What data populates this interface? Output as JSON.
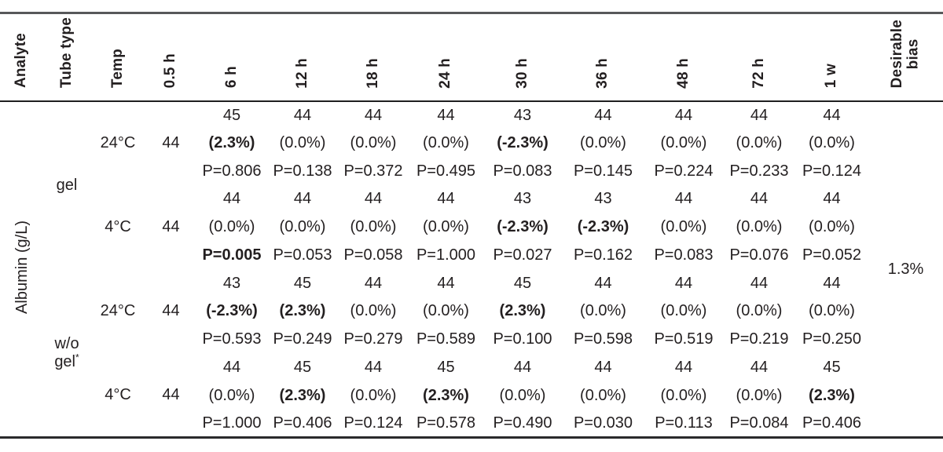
{
  "table": {
    "column_headers": [
      "Analyte",
      "Tube type",
      "Temp",
      "0.5 h",
      "6 h",
      "12 h",
      "18 h",
      "24 h",
      "30 h",
      "36 h",
      "48 h",
      "72 h",
      "1 w",
      "Desirable\nbias"
    ],
    "analyte_label": "Albumin (g/L)",
    "desirable_bias": "1.3%",
    "groups": [
      {
        "tube_type": "gel",
        "tube_note": "",
        "conditions": [
          {
            "temp": "24°C",
            "baseline": "44",
            "cells": [
              {
                "value": "45",
                "pct": "(2.3%)",
                "pct_bold": true,
                "p": "P=0.806",
                "p_bold": false
              },
              {
                "value": "44",
                "pct": "(0.0%)",
                "pct_bold": false,
                "p": "P=0.138",
                "p_bold": false
              },
              {
                "value": "44",
                "pct": "(0.0%)",
                "pct_bold": false,
                "p": "P=0.372",
                "p_bold": false
              },
              {
                "value": "44",
                "pct": "(0.0%)",
                "pct_bold": false,
                "p": "P=0.495",
                "p_bold": false
              },
              {
                "value": "43",
                "pct": "(-2.3%)",
                "pct_bold": true,
                "p": "P=0.083",
                "p_bold": false
              },
              {
                "value": "44",
                "pct": "(0.0%)",
                "pct_bold": false,
                "p": "P=0.145",
                "p_bold": false
              },
              {
                "value": "44",
                "pct": "(0.0%)",
                "pct_bold": false,
                "p": "P=0.224",
                "p_bold": false
              },
              {
                "value": "44",
                "pct": "(0.0%)",
                "pct_bold": false,
                "p": "P=0.233",
                "p_bold": false
              },
              {
                "value": "44",
                "pct": "(0.0%)",
                "pct_bold": false,
                "p": "P=0.124",
                "p_bold": false
              }
            ]
          },
          {
            "temp": "4°C",
            "baseline": "44",
            "cells": [
              {
                "value": "44",
                "pct": "(0.0%)",
                "pct_bold": false,
                "p": "P=0.005",
                "p_bold": true
              },
              {
                "value": "44",
                "pct": "(0.0%)",
                "pct_bold": false,
                "p": "P=0.053",
                "p_bold": false
              },
              {
                "value": "44",
                "pct": "(0.0%)",
                "pct_bold": false,
                "p": "P=0.058",
                "p_bold": false
              },
              {
                "value": "44",
                "pct": "(0.0%)",
                "pct_bold": false,
                "p": "P=1.000",
                "p_bold": false
              },
              {
                "value": "43",
                "pct": "(-2.3%)",
                "pct_bold": true,
                "p": "P=0.027",
                "p_bold": false
              },
              {
                "value": "43",
                "pct": "(-2.3%)",
                "pct_bold": true,
                "p": "P=0.162",
                "p_bold": false
              },
              {
                "value": "44",
                "pct": "(0.0%)",
                "pct_bold": false,
                "p": "P=0.083",
                "p_bold": false
              },
              {
                "value": "44",
                "pct": "(0.0%)",
                "pct_bold": false,
                "p": "P=0.076",
                "p_bold": false
              },
              {
                "value": "44",
                "pct": "(0.0%)",
                "pct_bold": false,
                "p": "P=0.052",
                "p_bold": false
              }
            ]
          }
        ]
      },
      {
        "tube_type": "w/o gel",
        "tube_note": "*",
        "conditions": [
          {
            "temp": "24°C",
            "baseline": "44",
            "cells": [
              {
                "value": "43",
                "pct": "(-2.3%)",
                "pct_bold": true,
                "p": "P=0.593",
                "p_bold": false
              },
              {
                "value": "45",
                "pct": "(2.3%)",
                "pct_bold": true,
                "p": "P=0.249",
                "p_bold": false
              },
              {
                "value": "44",
                "pct": "(0.0%)",
                "pct_bold": false,
                "p": "P=0.279",
                "p_bold": false
              },
              {
                "value": "44",
                "pct": "(0.0%)",
                "pct_bold": false,
                "p": "P=0.589",
                "p_bold": false
              },
              {
                "value": "45",
                "pct": "(2.3%)",
                "pct_bold": true,
                "p": "P=0.100",
                "p_bold": false
              },
              {
                "value": "44",
                "pct": "(0.0%)",
                "pct_bold": false,
                "p": "P=0.598",
                "p_bold": false
              },
              {
                "value": "44",
                "pct": "(0.0%)",
                "pct_bold": false,
                "p": "P=0.519",
                "p_bold": false
              },
              {
                "value": "44",
                "pct": "(0.0%)",
                "pct_bold": false,
                "p": "P=0.219",
                "p_bold": false
              },
              {
                "value": "44",
                "pct": "(0.0%)",
                "pct_bold": false,
                "p": "P=0.250",
                "p_bold": false
              }
            ]
          },
          {
            "temp": "4°C",
            "baseline": "44",
            "cells": [
              {
                "value": "44",
                "pct": "(0.0%)",
                "pct_bold": false,
                "p": "P=1.000",
                "p_bold": false
              },
              {
                "value": "45",
                "pct": "(2.3%)",
                "pct_bold": true,
                "p": "P=0.406",
                "p_bold": false
              },
              {
                "value": "44",
                "pct": "(0.0%)",
                "pct_bold": false,
                "p": "P=0.124",
                "p_bold": false
              },
              {
                "value": "45",
                "pct": "(2.3%)",
                "pct_bold": true,
                "p": "P=0.578",
                "p_bold": false
              },
              {
                "value": "44",
                "pct": "(0.0%)",
                "pct_bold": false,
                "p": "P=0.490",
                "p_bold": false
              },
              {
                "value": "44",
                "pct": "(0.0%)",
                "pct_bold": false,
                "p": "P=0.030",
                "p_bold": false
              },
              {
                "value": "44",
                "pct": "(0.0%)",
                "pct_bold": false,
                "p": "P=0.113",
                "p_bold": false
              },
              {
                "value": "44",
                "pct": "(0.0%)",
                "pct_bold": false,
                "p": "P=0.084",
                "p_bold": false
              },
              {
                "value": "45",
                "pct": "(2.3%)",
                "pct_bold": true,
                "p": "P=0.406",
                "p_bold": false
              }
            ]
          }
        ]
      }
    ]
  }
}
